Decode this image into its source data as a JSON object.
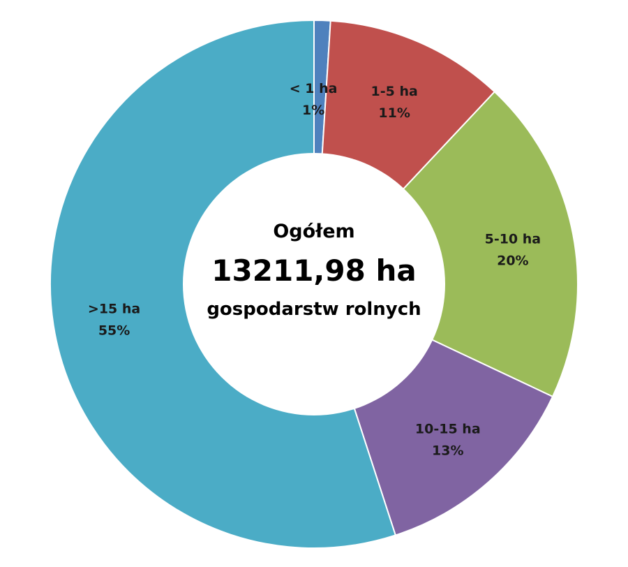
{
  "chart_data": {
    "type": "pie",
    "donut": true,
    "center_text": {
      "line1": "Ogółem",
      "line2": "13211,98 ha",
      "line3": "gospodarstw rolnych"
    },
    "slices": [
      {
        "category": "< 1 ha",
        "value": 1,
        "label": "1%",
        "color": "#4f81bd"
      },
      {
        "category": "1-5 ha",
        "value": 11,
        "label": "11%",
        "color": "#c0504d"
      },
      {
        "category": "5-10 ha",
        "value": 20,
        "label": "20%",
        "color": "#9bbb59"
      },
      {
        "category": "10-15 ha",
        "value": 13,
        "label": "13%",
        "color": "#8064a2"
      },
      {
        "category": ">15 ha",
        "value": 55,
        "label": "55%",
        "color": "#4bacc6"
      }
    ]
  }
}
